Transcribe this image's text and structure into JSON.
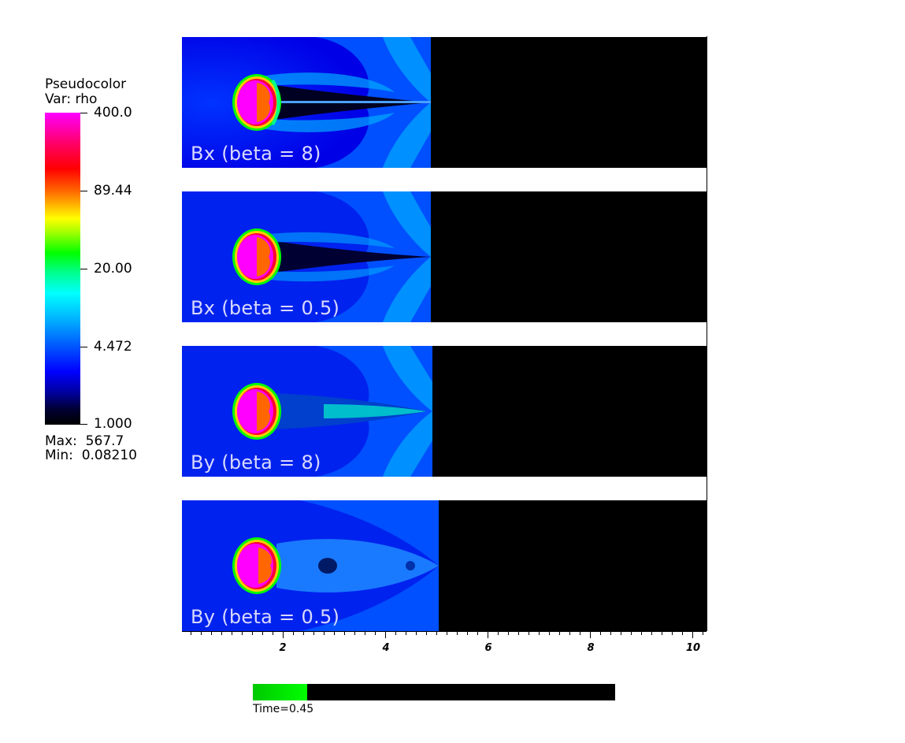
{
  "legend": {
    "title_line1": "Pseudocolor",
    "title_line2": "Var: rho",
    "ticks": [
      "400.0",
      "89.44",
      "20.00",
      "4.472",
      "1.000"
    ],
    "max_text": "Max:  567.7",
    "min_text": "Min:  0.08210"
  },
  "panels": [
    {
      "label": "Bx (beta = 8)"
    },
    {
      "label": "Bx (beta = 0.5)"
    },
    {
      "label": "By (beta = 8)"
    },
    {
      "label": "By (beta = 0.5)"
    }
  ],
  "x_axis": {
    "tick_labels": [
      "2",
      "4",
      "6",
      "8",
      "10"
    ]
  },
  "time": {
    "label": "Time=0.45",
    "progress_fraction": 0.15
  },
  "colors": {
    "background_field": "#0000ff",
    "blob_core": "#ff00ff",
    "blob_inner": "#ff6600",
    "cold_region": "#000000"
  }
}
